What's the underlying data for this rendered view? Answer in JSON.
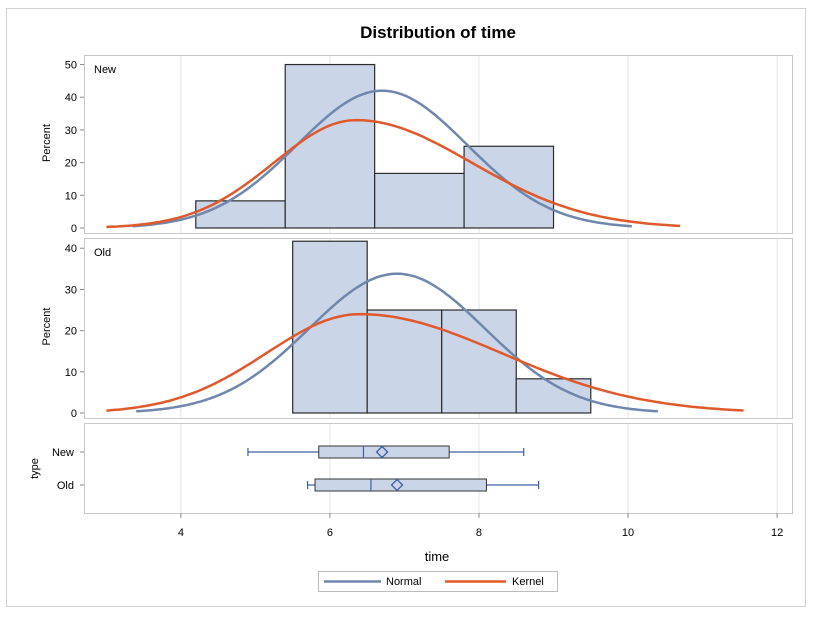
{
  "chart_data": {
    "type": "histogram",
    "title": "Distribution of time",
    "xlabel": "time",
    "ylabel": "Percent",
    "xlim": [
      2.7,
      12.2
    ],
    "x_ticks": [
      4,
      6,
      8,
      10,
      12
    ],
    "grid": true,
    "legend_position": "bottom",
    "colors": {
      "bar_fill": "#cbd5e8",
      "bar_stroke": "#2b2b2b",
      "normal": "#6f86ad",
      "kernel": "#e0592a",
      "box": "#cbd5e8",
      "whisker": "#3d5fa3",
      "grid": "#e3e3e3",
      "axis": "#8a8a8a",
      "border": "#c8c8c8",
      "text": "#000000"
    },
    "legend": [
      {
        "label": "Normal",
        "series": "normal"
      },
      {
        "label": "Kernel",
        "series": "kernel"
      }
    ],
    "panels": [
      {
        "label": "New",
        "ylim": [
          0,
          52
        ],
        "y_ticks": [
          0,
          10,
          20,
          30,
          40,
          50
        ],
        "bins": [
          {
            "x0": 4.2,
            "x1": 5.4,
            "percent": 8.3
          },
          {
            "x0": 5.4,
            "x1": 6.6,
            "percent": 50.0
          },
          {
            "x0": 6.6,
            "x1": 7.8,
            "percent": 16.7
          },
          {
            "x0": 7.8,
            "x1": 9.0,
            "percent": 25.0
          }
        ],
        "normal": {
          "mean": 6.7,
          "sd": 1.14,
          "bin_width": 1.2,
          "x_range": [
            3.35,
            10.05
          ]
        },
        "kernel": {
          "peak_x": 6.35,
          "peak_y": 33,
          "sd_left": 1.1,
          "sd_right": 1.55,
          "x_range": [
            3.0,
            10.7
          ]
        }
      },
      {
        "label": "Old",
        "ylim": [
          0,
          42
        ],
        "y_ticks": [
          0,
          10,
          20,
          30,
          40
        ],
        "bins": [
          {
            "x0": 5.5,
            "x1": 6.5,
            "percent": 41.7
          },
          {
            "x0": 6.5,
            "x1": 7.5,
            "percent": 25.0
          },
          {
            "x0": 7.5,
            "x1": 8.5,
            "percent": 25.0
          },
          {
            "x0": 8.5,
            "x1": 9.5,
            "percent": 8.3
          }
        ],
        "normal": {
          "mean": 6.9,
          "sd": 1.18,
          "bin_width": 1.0,
          "x_range": [
            3.4,
            10.4
          ]
        },
        "kernel": {
          "peak_x": 6.4,
          "peak_y": 24,
          "sd_left": 1.25,
          "sd_right": 1.9,
          "x_range": [
            3.0,
            11.55
          ]
        }
      }
    ],
    "boxplot": {
      "ylabel": "type",
      "groups": [
        {
          "label": "New",
          "min": 4.9,
          "q1": 5.85,
          "median": 6.45,
          "mean": 6.7,
          "q3": 7.6,
          "max": 8.6
        },
        {
          "label": "Old",
          "min": 5.7,
          "q1": 5.8,
          "median": 6.55,
          "mean": 6.9,
          "q3": 8.1,
          "max": 8.8
        }
      ]
    }
  }
}
